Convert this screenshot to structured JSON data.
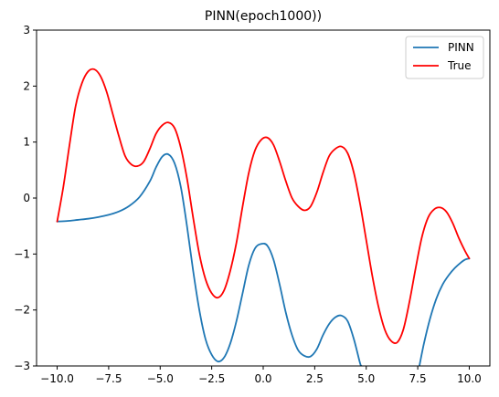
{
  "chart_data": {
    "type": "line",
    "title": "PINN(epoch1000))",
    "xlabel": "",
    "ylabel": "",
    "xlim": [
      -11.0,
      11.0
    ],
    "ylim": [
      -3,
      3
    ],
    "xticks": [
      -10.0,
      -7.5,
      -5.0,
      -2.5,
      0.0,
      2.5,
      5.0,
      7.5,
      10.0
    ],
    "xtick_labels": [
      "−10.0",
      "−7.5",
      "−5.0",
      "−2.5",
      "0.0",
      "2.5",
      "5.0",
      "7.5",
      "10.0"
    ],
    "yticks": [
      -3,
      -2,
      -1,
      0,
      1,
      2,
      3
    ],
    "ytick_labels": [
      "−3",
      "−2",
      "−1",
      "0",
      "1",
      "2",
      "3"
    ],
    "grid": false,
    "legend_position": "top-right",
    "series": [
      {
        "name": "PINN",
        "color": "#1f77b4",
        "points": [
          [
            -10.0,
            -0.42
          ],
          [
            -9.5,
            -0.41
          ],
          [
            -9.0,
            -0.39
          ],
          [
            -8.5,
            -0.37
          ],
          [
            -8.0,
            -0.34
          ],
          [
            -7.5,
            -0.3
          ],
          [
            -7.0,
            -0.24
          ],
          [
            -6.5,
            -0.14
          ],
          [
            -6.0,
            0.02
          ],
          [
            -5.5,
            0.3
          ],
          [
            -5.2,
            0.55
          ],
          [
            -4.9,
            0.74
          ],
          [
            -4.6,
            0.78
          ],
          [
            -4.3,
            0.62
          ],
          [
            -4.0,
            0.2
          ],
          [
            -3.7,
            -0.5
          ],
          [
            -3.4,
            -1.3
          ],
          [
            -3.1,
            -2.0
          ],
          [
            -2.8,
            -2.52
          ],
          [
            -2.5,
            -2.8
          ],
          [
            -2.2,
            -2.92
          ],
          [
            -1.9,
            -2.85
          ],
          [
            -1.6,
            -2.6
          ],
          [
            -1.3,
            -2.2
          ],
          [
            -1.0,
            -1.7
          ],
          [
            -0.7,
            -1.2
          ],
          [
            -0.4,
            -0.9
          ],
          [
            -0.1,
            -0.82
          ],
          [
            0.2,
            -0.85
          ],
          [
            0.5,
            -1.1
          ],
          [
            0.8,
            -1.55
          ],
          [
            1.1,
            -2.05
          ],
          [
            1.4,
            -2.45
          ],
          [
            1.7,
            -2.72
          ],
          [
            2.0,
            -2.82
          ],
          [
            2.3,
            -2.83
          ],
          [
            2.6,
            -2.7
          ],
          [
            2.9,
            -2.45
          ],
          [
            3.2,
            -2.25
          ],
          [
            3.5,
            -2.13
          ],
          [
            3.8,
            -2.1
          ],
          [
            4.1,
            -2.2
          ],
          [
            4.4,
            -2.52
          ],
          [
            4.7,
            -2.95
          ],
          [
            4.77,
            -3.0
          ]
        ],
        "points_b": [
          [
            7.58,
            -3.0
          ],
          [
            7.8,
            -2.6
          ],
          [
            8.1,
            -2.15
          ],
          [
            8.4,
            -1.8
          ],
          [
            8.7,
            -1.55
          ],
          [
            9.0,
            -1.38
          ],
          [
            9.3,
            -1.25
          ],
          [
            9.6,
            -1.15
          ],
          [
            9.8,
            -1.1
          ],
          [
            10.0,
            -1.08
          ]
        ]
      },
      {
        "name": "True",
        "color": "#ff0000",
        "points": [
          [
            -10.0,
            -0.42
          ],
          [
            -9.7,
            0.2
          ],
          [
            -9.4,
            0.95
          ],
          [
            -9.1,
            1.65
          ],
          [
            -8.8,
            2.05
          ],
          [
            -8.5,
            2.26
          ],
          [
            -8.2,
            2.3
          ],
          [
            -7.9,
            2.18
          ],
          [
            -7.6,
            1.9
          ],
          [
            -7.3,
            1.5
          ],
          [
            -7.0,
            1.1
          ],
          [
            -6.7,
            0.75
          ],
          [
            -6.4,
            0.6
          ],
          [
            -6.1,
            0.57
          ],
          [
            -5.8,
            0.65
          ],
          [
            -5.5,
            0.88
          ],
          [
            -5.2,
            1.15
          ],
          [
            -4.9,
            1.3
          ],
          [
            -4.6,
            1.35
          ],
          [
            -4.3,
            1.25
          ],
          [
            -4.0,
            0.9
          ],
          [
            -3.7,
            0.35
          ],
          [
            -3.4,
            -0.35
          ],
          [
            -3.1,
            -1.0
          ],
          [
            -2.8,
            -1.45
          ],
          [
            -2.5,
            -1.7
          ],
          [
            -2.2,
            -1.78
          ],
          [
            -1.9,
            -1.65
          ],
          [
            -1.6,
            -1.3
          ],
          [
            -1.3,
            -0.8
          ],
          [
            -1.0,
            -0.15
          ],
          [
            -0.7,
            0.45
          ],
          [
            -0.4,
            0.85
          ],
          [
            -0.1,
            1.04
          ],
          [
            0.2,
            1.08
          ],
          [
            0.5,
            0.95
          ],
          [
            0.8,
            0.65
          ],
          [
            1.1,
            0.3
          ],
          [
            1.4,
            0.0
          ],
          [
            1.7,
            -0.15
          ],
          [
            2.0,
            -0.22
          ],
          [
            2.3,
            -0.15
          ],
          [
            2.6,
            0.1
          ],
          [
            2.9,
            0.45
          ],
          [
            3.2,
            0.75
          ],
          [
            3.5,
            0.88
          ],
          [
            3.8,
            0.92
          ],
          [
            4.1,
            0.8
          ],
          [
            4.4,
            0.45
          ],
          [
            4.7,
            -0.1
          ],
          [
            5.0,
            -0.75
          ],
          [
            5.3,
            -1.4
          ],
          [
            5.6,
            -1.95
          ],
          [
            5.9,
            -2.35
          ],
          [
            6.2,
            -2.55
          ],
          [
            6.5,
            -2.58
          ],
          [
            6.8,
            -2.35
          ],
          [
            7.1,
            -1.85
          ],
          [
            7.4,
            -1.25
          ],
          [
            7.7,
            -0.7
          ],
          [
            8.0,
            -0.35
          ],
          [
            8.3,
            -0.2
          ],
          [
            8.6,
            -0.17
          ],
          [
            8.9,
            -0.25
          ],
          [
            9.2,
            -0.45
          ],
          [
            9.5,
            -0.72
          ],
          [
            9.8,
            -0.95
          ],
          [
            10.0,
            -1.08
          ]
        ]
      }
    ]
  }
}
